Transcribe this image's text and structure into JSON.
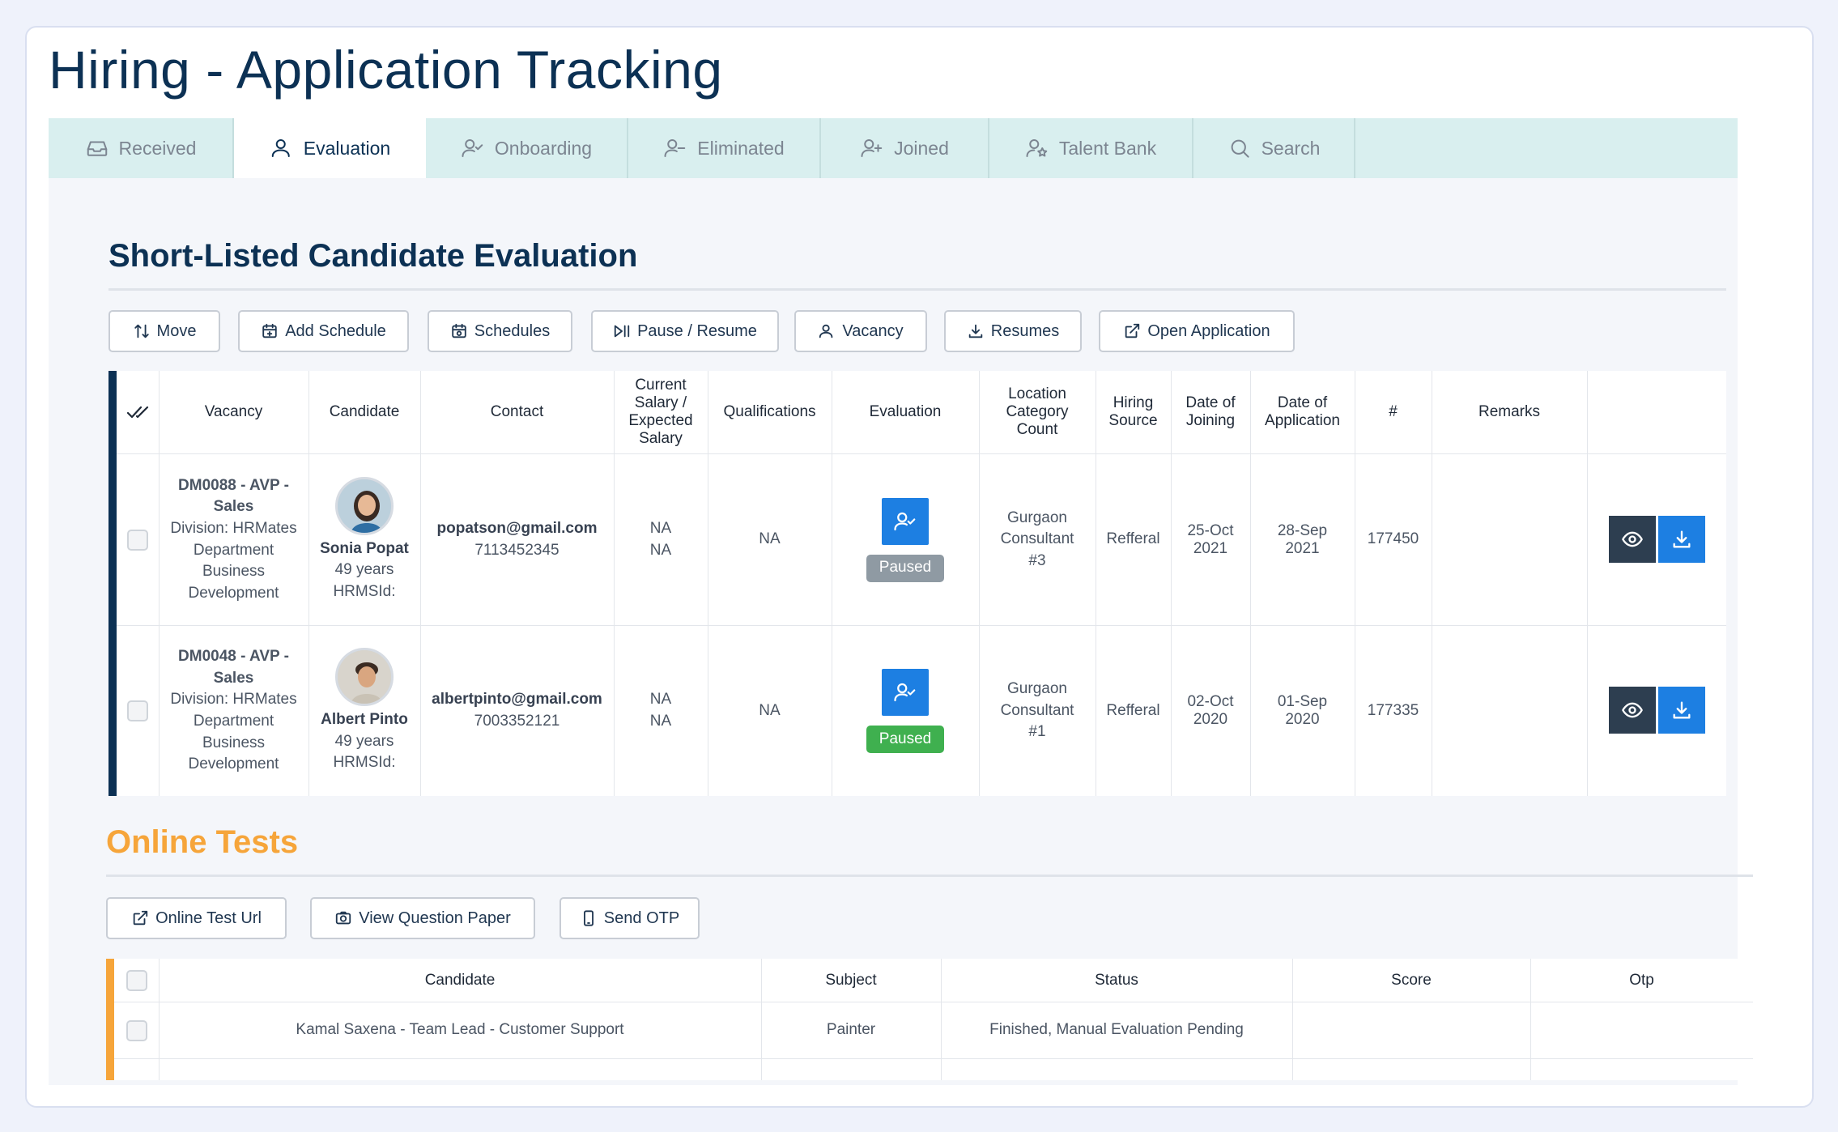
{
  "page_title": "Hiring - Application Tracking",
  "tabs": [
    {
      "label": "Received",
      "icon": "inbox-icon"
    },
    {
      "label": "Evaluation",
      "icon": "user-icon",
      "active": true
    },
    {
      "label": "Onboarding",
      "icon": "user-check-icon"
    },
    {
      "label": "Eliminated",
      "icon": "user-minus-icon"
    },
    {
      "label": "Joined",
      "icon": "user-plus-icon"
    },
    {
      "label": "Talent Bank",
      "icon": "user-star-icon"
    },
    {
      "label": "Search",
      "icon": "search-icon"
    }
  ],
  "evaluation": {
    "title": "Short-Listed Candidate Evaluation",
    "toolbar": {
      "move": "Move",
      "add_schedule": "Add Schedule",
      "schedules": "Schedules",
      "pause_resume": "Pause / Resume",
      "vacancy": "Vacancy",
      "resumes": "Resumes",
      "open_application": "Open Application"
    },
    "columns": {
      "vacancy": "Vacancy",
      "candidate": "Candidate",
      "contact": "Contact",
      "salary": "Current Salary / Expected Salary",
      "qualifications": "Qualifications",
      "evaluation": "Evaluation",
      "location": "Location Category Count",
      "hiring_source": "Hiring Source",
      "date_joining": "Date of Joining",
      "date_application": "Date of Application",
      "number": "#",
      "remarks": "Remarks"
    },
    "rows": [
      {
        "vacancy_code": "DM0088 - AVP - Sales",
        "vacancy_detail": "Division: HRMates Department Business Development",
        "candidate_name": "Sonia Popat",
        "candidate_age": "49 years",
        "candidate_hrms": "HRMSId:",
        "email": "popatson@gmail.com",
        "phone": "7113452345",
        "current_salary": "NA",
        "expected_salary": "NA",
        "qualifications": "NA",
        "status": "Paused",
        "status_color": "#8f9aa3",
        "location": "Gurgaon Consultant #3",
        "hiring_source": "Refferal",
        "date_joining": "25-Oct 2021",
        "date_application": "28-Sep 2021",
        "number": "177450",
        "remarks": ""
      },
      {
        "vacancy_code": "DM0048 - AVP - Sales",
        "vacancy_detail": "Division: HRMates Department Business Development",
        "candidate_name": "Albert Pinto",
        "candidate_age": "49 years",
        "candidate_hrms": "HRMSId:",
        "email": "albertpinto@gmail.com",
        "phone": "7003352121",
        "current_salary": "NA",
        "expected_salary": "NA",
        "qualifications": "NA",
        "status": "Paused",
        "status_color": "#3fb04f",
        "location": "Gurgaon Consultant #1",
        "hiring_source": "Refferal",
        "date_joining": "02-Oct 2020",
        "date_application": "01-Sep 2020",
        "number": "177335",
        "remarks": ""
      }
    ]
  },
  "online_tests": {
    "title": "Online Tests",
    "toolbar": {
      "test_url": "Online Test Url",
      "question_paper": "View Question Paper",
      "send_otp": "Send OTP"
    },
    "columns": {
      "candidate": "Candidate",
      "subject": "Subject",
      "status": "Status",
      "score": "Score",
      "otp": "Otp"
    },
    "rows": [
      {
        "candidate": "Kamal Saxena - Team Lead - Customer Support",
        "subject": "Painter",
        "status": "Finished, Manual Evaluation Pending",
        "score": "",
        "otp": ""
      }
    ]
  },
  "colors": {
    "navy": "#0c3154",
    "accent_orange": "#f6a53a",
    "primary_blue": "#1d7fe2",
    "dark_slate": "#2d3e50",
    "tab_bg": "#d9efef"
  }
}
